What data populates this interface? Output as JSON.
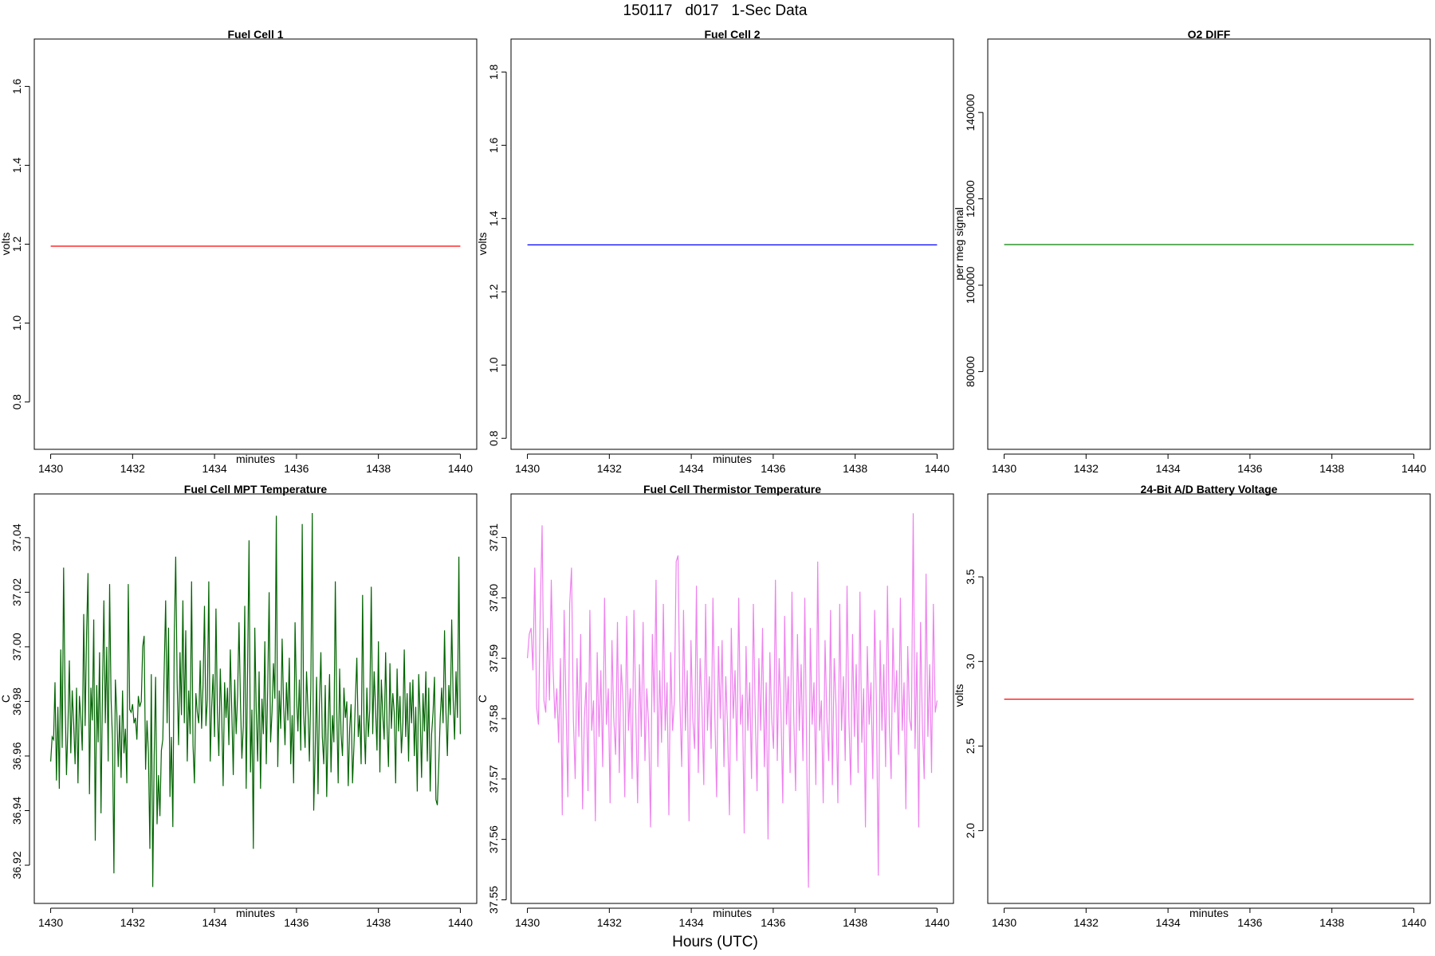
{
  "page": {
    "title": "150117   d017   1-Sec Data",
    "bottom_label": "Hours (UTC)"
  },
  "chart_data": [
    {
      "type": "line",
      "title": "Fuel Cell 1",
      "xlabel": "minutes",
      "ylabel": "volts",
      "xlim": [
        1429.6,
        1440.4
      ],
      "ylim": [
        0.68,
        1.72
      ],
      "x_ticks": [
        1430,
        1432,
        1434,
        1436,
        1438,
        1440
      ],
      "y_ticks": [
        0.8,
        1.0,
        1.2,
        1.4,
        1.6
      ],
      "color": "#ff0000",
      "series": [
        {
          "x": [
            1430,
            1440
          ],
          "y": [
            1.195,
            1.195
          ]
        }
      ]
    },
    {
      "type": "line",
      "title": "Fuel Cell 2",
      "xlabel": "minutes",
      "ylabel": "volts",
      "xlim": [
        1429.6,
        1440.4
      ],
      "ylim": [
        0.77,
        1.89
      ],
      "x_ticks": [
        1430,
        1432,
        1434,
        1436,
        1438,
        1440
      ],
      "y_ticks": [
        0.8,
        1.0,
        1.2,
        1.4,
        1.6,
        1.8
      ],
      "color": "#0000ff",
      "series": [
        {
          "x": [
            1430,
            1440
          ],
          "y": [
            1.328,
            1.328
          ]
        }
      ]
    },
    {
      "type": "line",
      "title": "O2 DIFF",
      "xlabel": "",
      "ylabel": "per meg signal",
      "xlim": [
        1429.6,
        1440.4
      ],
      "ylim": [
        62000,
        157000
      ],
      "x_ticks": [
        1430,
        1432,
        1434,
        1436,
        1438,
        1440
      ],
      "y_ticks": [
        80000,
        100000,
        120000,
        140000
      ],
      "color": "#008000",
      "series": [
        {
          "x": [
            1430,
            1440
          ],
          "y": [
            109400,
            109400
          ]
        }
      ]
    },
    {
      "type": "line",
      "title": "Fuel Cell MPT Temperature",
      "xlabel": "minutes",
      "ylabel": "C",
      "xlim": [
        1429.6,
        1440.4
      ],
      "ylim": [
        36.906,
        37.056
      ],
      "x_ticks": [
        1430,
        1432,
        1434,
        1436,
        1438,
        1440
      ],
      "y_ticks": [
        36.92,
        36.94,
        36.96,
        36.98,
        37.0,
        37.02,
        37.04
      ],
      "color": "#006400",
      "series": [
        {
          "x_start": 1430,
          "x_step": 0.0333,
          "y": [
            36.958,
            36.967,
            36.966,
            36.987,
            36.951,
            36.978,
            36.948,
            36.999,
            36.963,
            37.029,
            36.982,
            36.953,
            36.971,
            36.995,
            36.961,
            36.984,
            36.972,
            36.957,
            36.985,
            36.95,
            36.982,
            36.974,
            36.962,
            37.012,
            36.971,
            37.005,
            37.027,
            36.946,
            36.985,
            36.973,
            37.01,
            36.929,
            36.986,
            36.965,
            36.998,
            36.939,
            36.983,
            37.017,
            36.972,
            37.0,
            36.958,
            37.023,
            36.981,
            36.966,
            36.917,
            36.988,
            36.976,
            36.956,
            36.975,
            36.952,
            36.984,
            36.961,
            36.97,
            36.95,
            37.023,
            36.977,
            36.976,
            36.979,
            36.972,
            36.974,
            36.966,
            36.982,
            36.978,
            36.98,
            37.0,
            37.004,
            36.955,
            36.973,
            36.961,
            36.926,
            36.99,
            36.912,
            36.96,
            36.989,
            36.935,
            36.953,
            36.938,
            36.962,
            36.966,
            36.992,
            37.017,
            36.972,
            37.007,
            36.945,
            36.967,
            36.934,
            37.004,
            37.033,
            36.987,
            36.964,
            36.998,
            36.975,
            37.017,
            36.972,
            37.006,
            36.958,
            36.984,
            36.968,
            37.024,
            36.964,
            36.95,
            36.983,
            36.976,
            36.972,
            36.995,
            36.97,
            36.986,
            37.015,
            36.971,
            36.981,
            37.024,
            36.958,
            36.978,
            36.99,
            36.967,
            37.014,
            36.976,
            36.96,
            36.992,
            36.975,
            36.949,
            36.987,
            36.974,
            36.985,
            36.964,
            36.999,
            36.977,
            36.953,
            36.988,
            36.968,
            36.982,
            37.009,
            36.98,
            36.959,
            36.971,
            37.015,
            36.948,
            36.993,
            37.039,
            36.954,
            36.977,
            36.926,
            37.007,
            36.977,
            36.958,
            36.991,
            36.948,
            36.981,
            36.968,
            37.002,
            36.957,
            36.985,
            37.02,
            36.965,
            36.976,
            36.994,
            36.981,
            37.048,
            36.956,
            36.984,
            36.97,
            37.003,
            36.979,
            36.964,
            36.987,
            36.973,
            36.996,
            36.957,
            36.975,
            36.95,
            37.009,
            36.982,
            36.969,
            36.988,
            36.962,
            37.045,
            36.975,
            36.963,
            36.991,
            36.977,
            36.958,
            36.985,
            37.049,
            36.94,
            36.961,
            36.989,
            36.946,
            36.979,
            36.998,
            36.967,
            36.957,
            36.986,
            36.945,
            36.971,
            36.99,
            36.954,
            36.975,
            36.965,
            37.024,
            36.977,
            36.95,
            36.992,
            36.968,
            36.96,
            36.985,
            36.974,
            36.98,
            36.949,
            36.97,
            36.979,
            36.95,
            36.964,
            36.981,
            36.996,
            36.967,
            36.975,
            36.957,
            37.019,
            36.972,
            36.957,
            36.985,
            36.967,
            36.977,
            37.022,
            36.968,
            36.991,
            36.977,
            36.962,
            37.002,
            36.954,
            36.988,
            36.975,
            36.966,
            36.998,
            36.971,
            36.956,
            36.994,
            36.97,
            36.983,
            36.976,
            36.95,
            36.992,
            36.969,
            36.982,
            36.961,
            36.972,
            36.999,
            36.967,
            36.983,
            36.958,
            36.987,
            36.972,
            36.988,
            36.96,
            36.978,
            36.947,
            36.99,
            36.975,
            36.952,
            36.983,
            36.969,
            36.991,
            36.958,
            36.985,
            36.947,
            36.968,
            36.976,
            36.989,
            36.944,
            36.942,
            36.957,
            36.974,
            36.985,
            36.972,
            37.006,
            36.976,
            36.96,
            36.986,
            36.975,
            37.01,
            36.981,
            36.966,
            36.991,
            36.974,
            37.033,
            36.968
          ]
        }
      ]
    },
    {
      "type": "line",
      "title": "Fuel Cell Thermistor Temperature",
      "xlabel": "minutes",
      "ylabel": "C",
      "xlim": [
        1429.6,
        1440.4
      ],
      "ylim": [
        37.5494,
        37.6172
      ],
      "x_ticks": [
        1430,
        1432,
        1434,
        1436,
        1438,
        1440
      ],
      "y_ticks": [
        37.55,
        37.56,
        37.57,
        37.58,
        37.59,
        37.6,
        37.61
      ],
      "color": "#ee82ee",
      "series": [
        {
          "x_start": 1430,
          "x_step": 0.0333,
          "y": [
            37.59,
            37.594,
            37.595,
            37.588,
            37.605,
            37.582,
            37.579,
            37.598,
            37.612,
            37.583,
            37.581,
            37.595,
            37.583,
            37.603,
            37.588,
            37.58,
            37.585,
            37.576,
            37.59,
            37.564,
            37.598,
            37.583,
            37.567,
            37.599,
            37.605,
            37.58,
            37.57,
            37.59,
            37.577,
            37.594,
            37.565,
            37.58,
            37.586,
            37.568,
            37.598,
            37.578,
            37.583,
            37.563,
            37.591,
            37.577,
            37.588,
            37.572,
            37.6,
            37.579,
            37.585,
            37.566,
            37.593,
            37.58,
            37.574,
            37.596,
            37.571,
            37.589,
            37.583,
            37.567,
            37.597,
            37.578,
            37.585,
            37.57,
            37.598,
            37.581,
            37.566,
            37.589,
            37.577,
            37.596,
            37.573,
            37.585,
            37.579,
            37.562,
            37.594,
            37.581,
            37.603,
            37.572,
            37.588,
            37.576,
            37.599,
            37.578,
            37.586,
            37.564,
            37.591,
            37.578,
            37.583,
            37.606,
            37.607,
            37.583,
            37.572,
            37.598,
            37.578,
            37.588,
            37.563,
            37.593,
            37.58,
            37.575,
            37.602,
            37.571,
            37.59,
            37.582,
            37.569,
            37.599,
            37.578,
            37.587,
            37.575,
            37.6,
            37.581,
            37.567,
            37.592,
            37.58,
            37.593,
            37.572,
            37.587,
            37.578,
            37.564,
            37.595,
            37.58,
            37.588,
            37.573,
            37.6,
            37.579,
            37.584,
            37.561,
            37.592,
            37.578,
            37.586,
            37.57,
            37.599,
            37.581,
            37.568,
            37.59,
            37.578,
            37.595,
            37.572,
            37.586,
            37.56,
            37.591,
            37.58,
            37.575,
            37.603,
            37.573,
            37.59,
            37.581,
            37.566,
            37.597,
            37.579,
            37.587,
            37.571,
            37.601,
            37.58,
            37.568,
            37.594,
            37.578,
            37.589,
            37.573,
            37.6,
            37.575,
            37.552,
            37.595,
            37.579,
            37.586,
            37.569,
            37.606,
            37.578,
            37.583,
            37.566,
            37.593,
            37.58,
            37.573,
            37.598,
            37.569,
            37.59,
            37.582,
            37.566,
            37.599,
            37.578,
            37.587,
            37.573,
            37.602,
            37.58,
            37.569,
            37.594,
            37.577,
            37.589,
            37.571,
            37.601,
            37.576,
            37.585,
            37.562,
            37.592,
            37.579,
            37.586,
            37.57,
            37.598,
            37.582,
            37.554,
            37.593,
            37.578,
            37.589,
            37.572,
            37.602,
            37.579,
            37.57,
            37.595,
            37.581,
            37.588,
            37.574,
            37.6,
            37.578,
            37.586,
            37.565,
            37.592,
            37.58,
            37.578,
            37.614,
            37.575,
            37.591,
            37.562,
            37.596,
            37.579,
            37.57,
            37.604,
            37.577,
            37.589,
            37.571,
            37.599,
            37.581,
            37.583
          ]
        }
      ]
    },
    {
      "type": "line",
      "title": "24-Bit A/D Battery Voltage",
      "xlabel": "minutes",
      "ylabel": "volts",
      "xlim": [
        1429.6,
        1440.4
      ],
      "ylim": [
        1.57,
        3.99
      ],
      "x_ticks": [
        1430,
        1432,
        1434,
        1436,
        1438,
        1440
      ],
      "y_ticks": [
        2.0,
        2.5,
        3.0,
        3.5
      ],
      "color": "#ff0000",
      "series": [
        {
          "x": [
            1430,
            1440
          ],
          "y": [
            2.777,
            2.777
          ]
        }
      ]
    }
  ]
}
